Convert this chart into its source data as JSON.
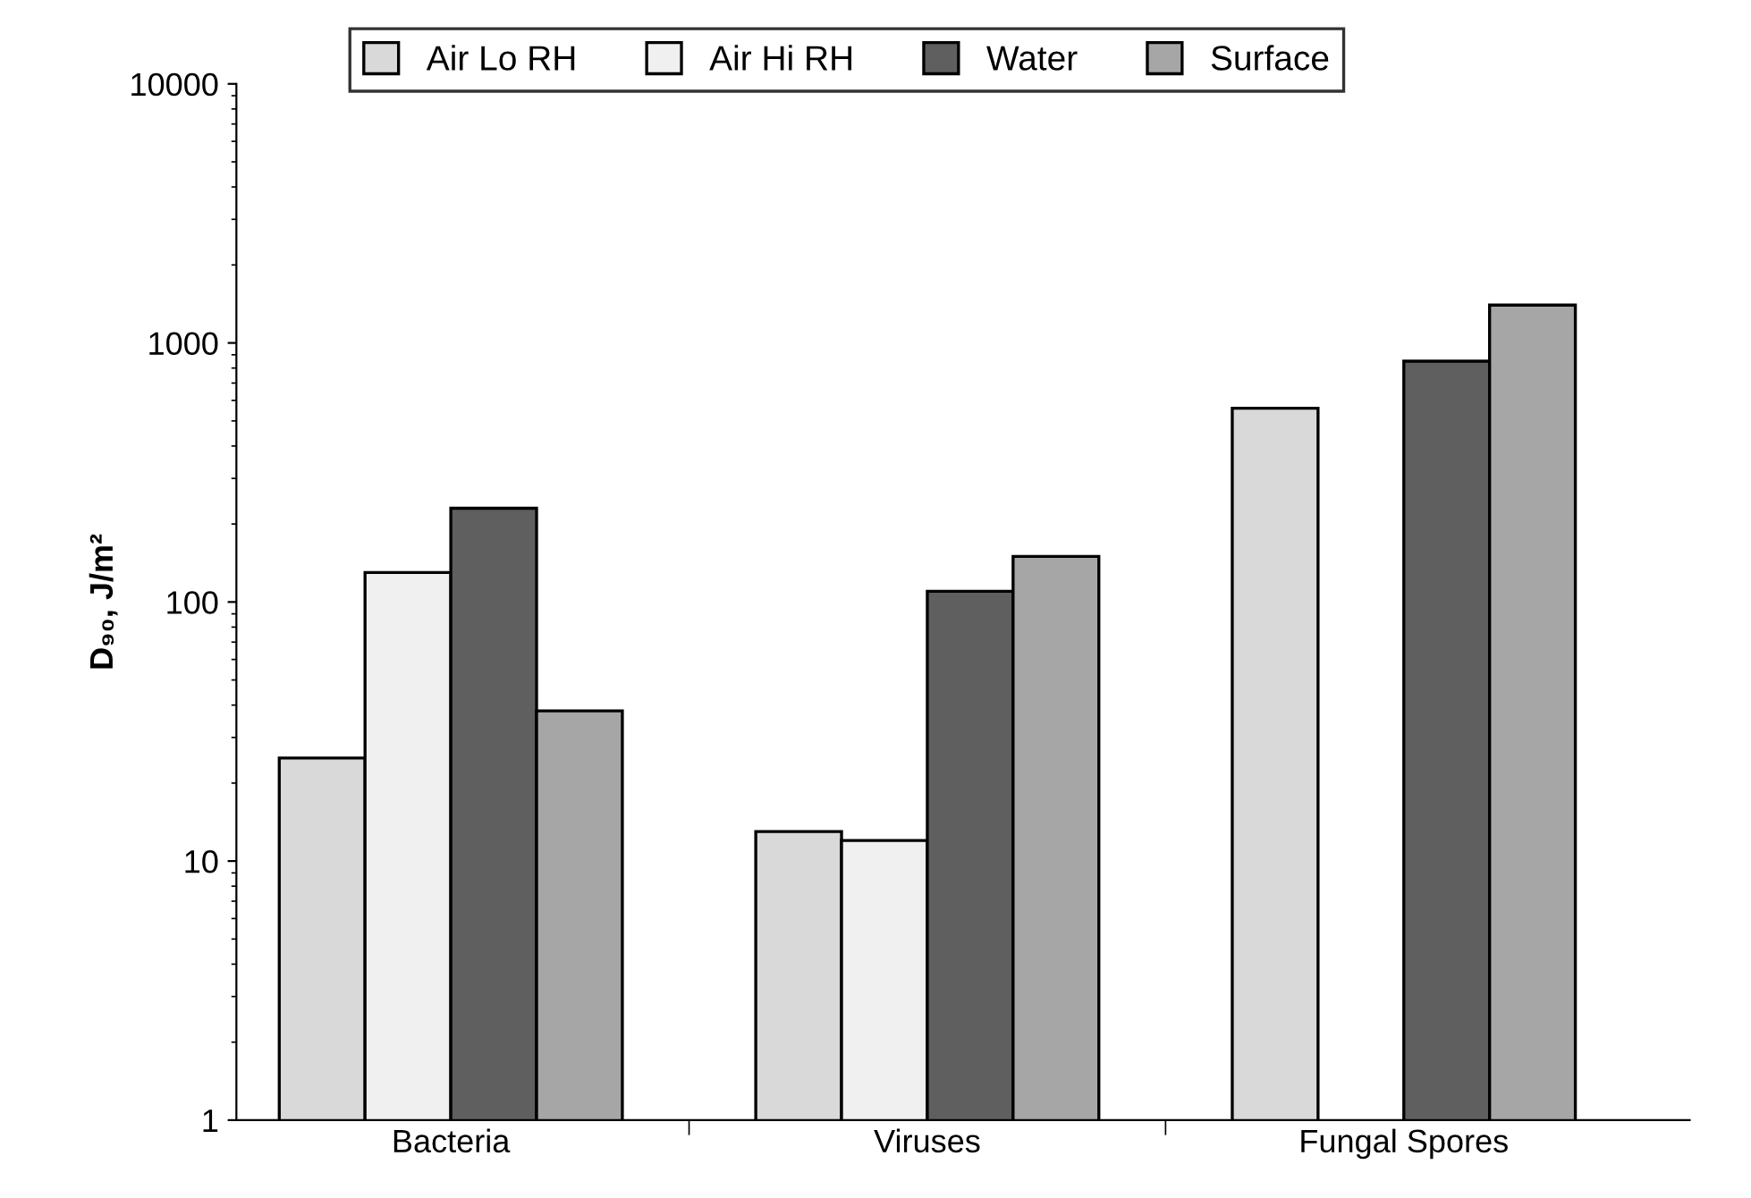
{
  "chart_data": {
    "type": "bar",
    "ylabel": "D₉₀, J/m²",
    "categories": [
      "Bacteria",
      "Viruses",
      "Fungal Spores"
    ],
    "series": [
      {
        "name": "Air Lo RH",
        "color": "#d9d9d9",
        "values": [
          25,
          13,
          560
        ]
      },
      {
        "name": "Air Hi RH",
        "color": "#f0f0f0",
        "values": [
          130,
          12,
          null
        ]
      },
      {
        "name": "Water",
        "color": "#5f5f5f",
        "values": [
          230,
          110,
          850
        ]
      },
      {
        "name": "Surface",
        "color": "#a6a6a6",
        "values": [
          38,
          150,
          1400
        ]
      }
    ],
    "log": true,
    "ylim": [
      1,
      10000
    ],
    "yticks": [
      1,
      10,
      100,
      1000,
      10000
    ],
    "grid": false,
    "legend": "top"
  }
}
